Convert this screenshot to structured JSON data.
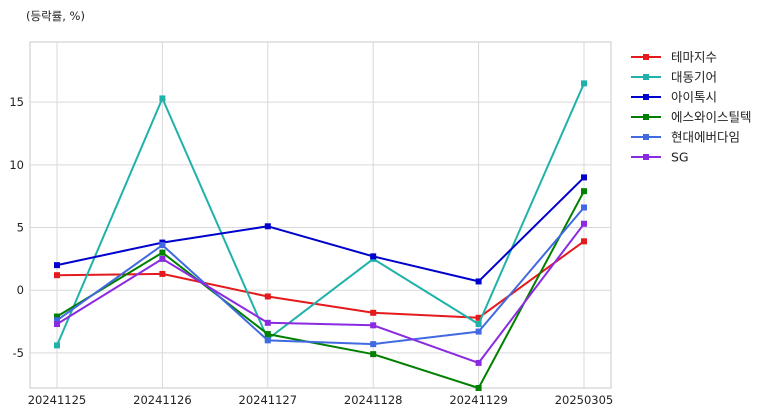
{
  "chart_data": {
    "type": "line",
    "title": "",
    "ylabel": "(등락률, %)",
    "xlabel": "",
    "categories": [
      "20241125",
      "20241126",
      "20241127",
      "20241128",
      "20241129",
      "20250305"
    ],
    "ylim": [
      -7.8,
      19.8
    ],
    "yticks": [
      -5,
      0,
      5,
      10,
      15
    ],
    "grid": true,
    "legend_position": "outside-right-top",
    "series": [
      {
        "name": "테마지수",
        "color": "#e41a1c",
        "values": [
          1.2,
          1.3,
          -0.5,
          -1.8,
          -2.2,
          3.9
        ]
      },
      {
        "name": "대동기어",
        "color": "#20b2aa",
        "values": [
          -4.4,
          15.3,
          -3.9,
          2.5,
          -2.7,
          16.5
        ]
      },
      {
        "name": "아이톡시",
        "color": "#0000cd",
        "values": [
          2.0,
          3.8,
          5.1,
          2.7,
          0.7,
          9.0
        ]
      },
      {
        "name": "에스와이스틸텍",
        "color": "#008000",
        "values": [
          -2.1,
          3.0,
          -3.5,
          -5.1,
          -7.8,
          7.9
        ]
      },
      {
        "name": "현대에버다임",
        "color": "#4169e1",
        "values": [
          -2.4,
          3.6,
          -4.0,
          -4.3,
          -3.3,
          6.6
        ]
      },
      {
        "name": "SG",
        "color": "#8a2be2",
        "values": [
          -2.7,
          2.5,
          -2.6,
          -2.8,
          -5.8,
          5.3
        ]
      }
    ]
  }
}
